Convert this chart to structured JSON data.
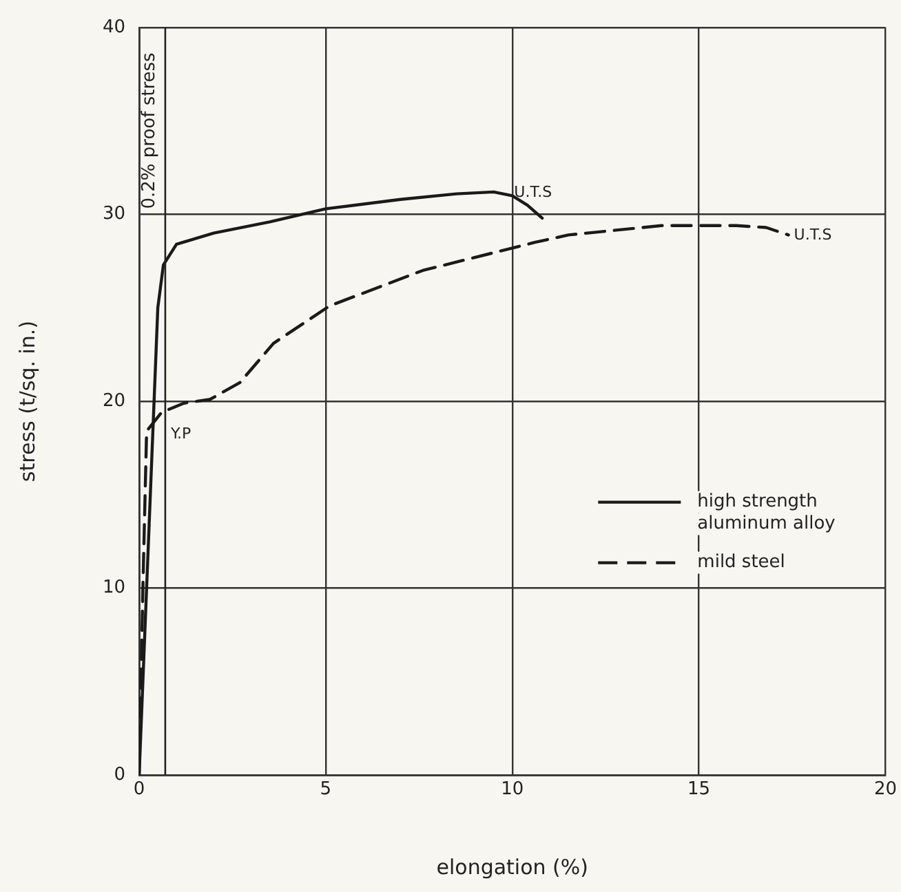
{
  "chart_data": {
    "type": "line",
    "xlabel": "elongation (%)",
    "ylabel": "stress (t/sq. in.)",
    "xlim": [
      0,
      20
    ],
    "xticks": [
      0,
      5,
      10,
      15,
      20
    ],
    "ylim": [
      0,
      40
    ],
    "yticks": [
      0,
      10,
      20,
      30,
      40
    ],
    "grid": true,
    "legend": "right",
    "marker": "none",
    "series": [
      {
        "name": "high strength aluminum alloy",
        "color": "#1a1a1a",
        "line_style": "solid",
        "x": [
          0,
          0.2,
          0.4,
          0.5,
          0.65,
          1,
          2,
          3.5,
          5,
          7,
          8.5,
          9.5,
          10,
          10.4,
          10.8
        ],
        "values": [
          0,
          10,
          20,
          25,
          27.3,
          28.4,
          29,
          29.6,
          30.3,
          30.8,
          31.1,
          31.2,
          31,
          30.5,
          29.8
        ]
      },
      {
        "name": "mild steel",
        "color": "#1a1a1a",
        "line_style": "dashed",
        "x": [
          0,
          0.1,
          0.2,
          0.6,
          1.2,
          1.9,
          2.7,
          3.6,
          5.1,
          7.6,
          10.6,
          11.5,
          14,
          16,
          16.8,
          17.4
        ],
        "values": [
          0,
          10,
          18.4,
          19.4,
          19.9,
          20.1,
          21,
          23.1,
          25.1,
          27,
          28.5,
          28.9,
          29.4,
          29.4,
          29.3,
          28.9
        ]
      }
    ],
    "ref_lines": [
      {
        "axis": "x",
        "value": 0.7,
        "label": "0.2% proof stress"
      }
    ],
    "annotations": [
      {
        "text": "U.T.S",
        "x": 9.9,
        "y": 31.2
      },
      {
        "text": "U.T.S",
        "x": 17.4,
        "y": 28.9
      },
      {
        "text": "Y.P",
        "x": 0.7,
        "y": 19
      }
    ]
  }
}
